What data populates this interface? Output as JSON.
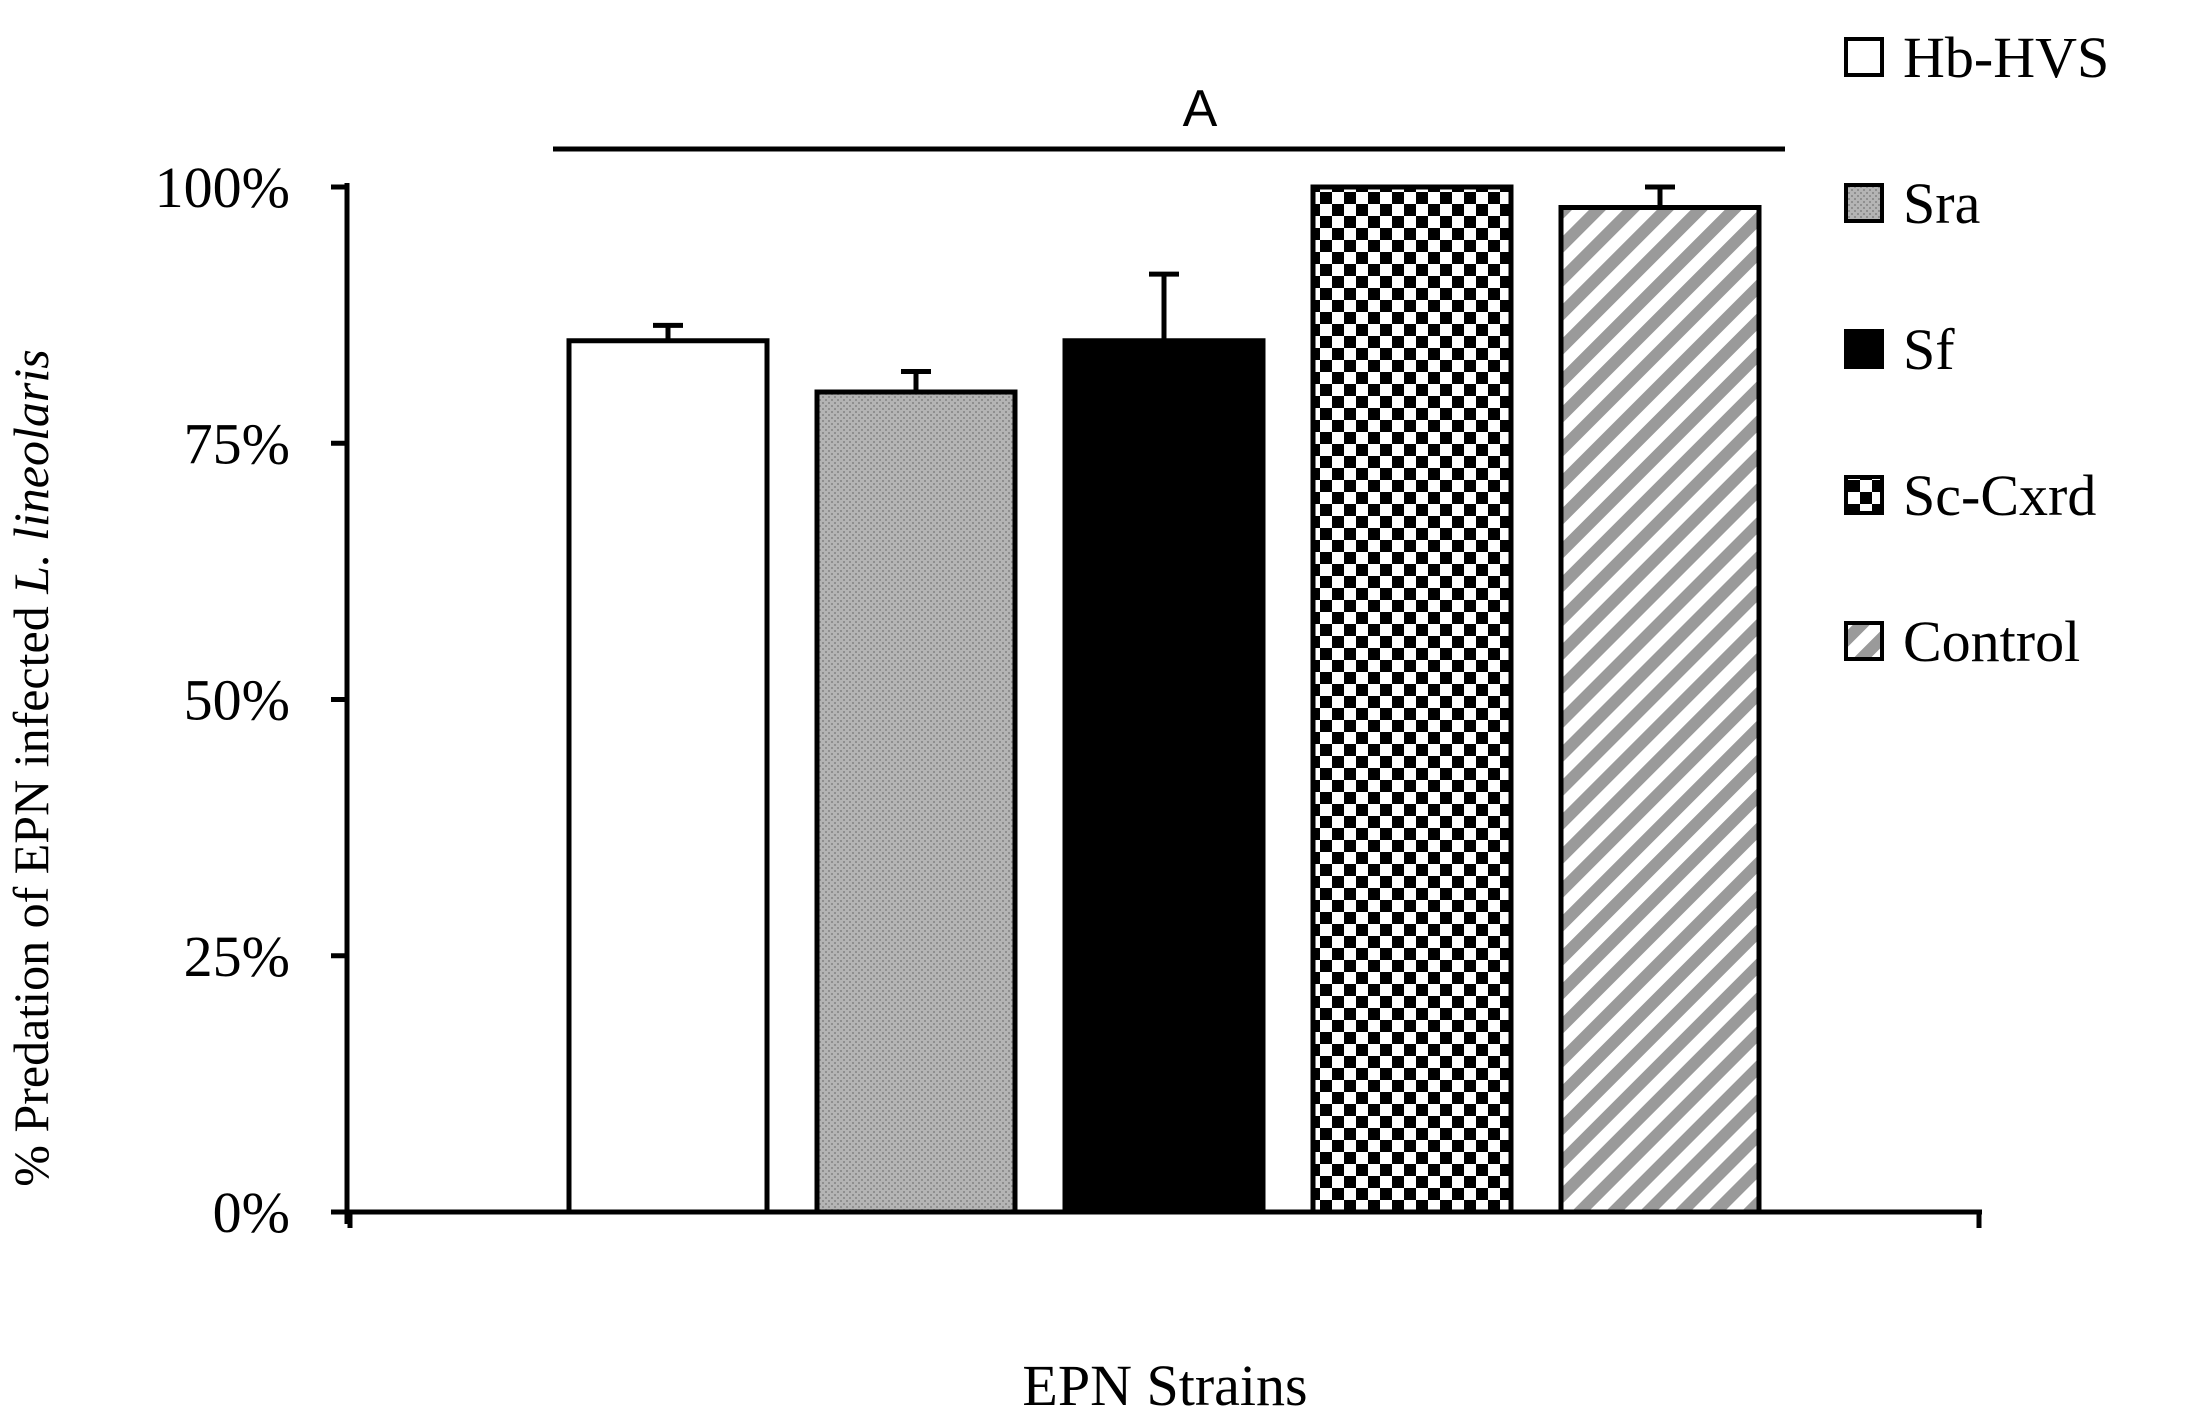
{
  "chart_data": {
    "type": "bar",
    "title": "",
    "xlabel": "EPN Strains",
    "ylabel_prefix": "% Predation of EPN infected ",
    "ylabel_italic": "L. lineolaris",
    "ylim": [
      0,
      1
    ],
    "yticks": [
      {
        "value": 0,
        "label": "0%"
      },
      {
        "value": 0.25,
        "label": "25%"
      },
      {
        "value": 0.5,
        "label": "50%"
      },
      {
        "value": 0.75,
        "label": "75%"
      },
      {
        "value": 1,
        "label": "100%"
      }
    ],
    "categories": [
      "Hb-HVS",
      "Sra",
      "Sf",
      "Sc-Cxrd",
      "Control"
    ],
    "values": [
      0.85,
      0.8,
      0.85,
      1.0,
      0.98
    ],
    "errors": [
      0.015,
      0.02,
      0.065,
      0,
      0.02
    ],
    "significance_label": "A",
    "legend_position": "right",
    "grid": false,
    "fills": [
      {
        "pattern": "solid",
        "color": "#ffffff"
      },
      {
        "pattern": "stipple",
        "color": "#aaaaaa"
      },
      {
        "pattern": "solid",
        "color": "#000000"
      },
      {
        "pattern": "checker",
        "color": "#000000"
      },
      {
        "pattern": "diagonal",
        "color": "#999999"
      }
    ]
  }
}
